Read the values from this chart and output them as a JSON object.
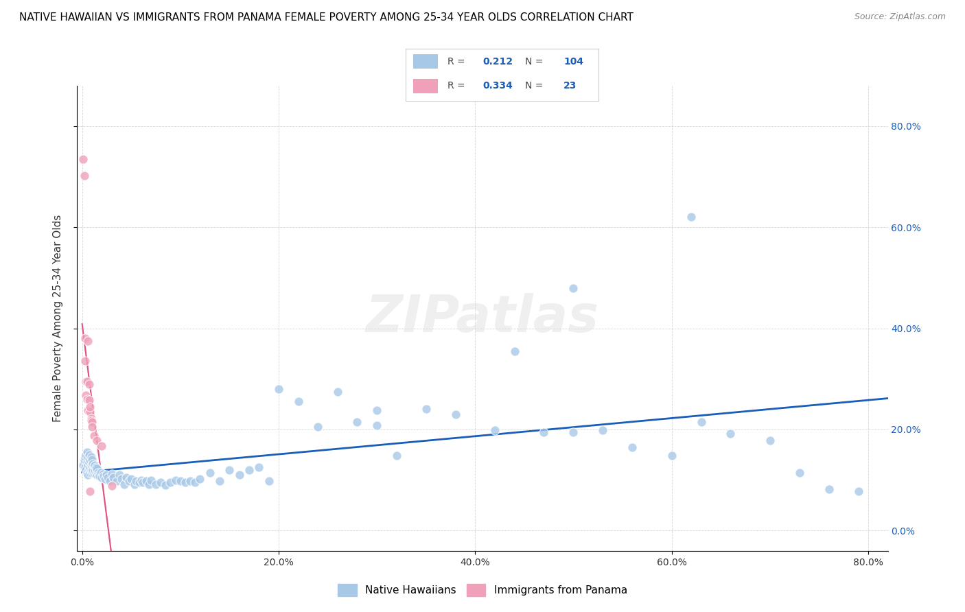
{
  "title": "NATIVE HAWAIIAN VS IMMIGRANTS FROM PANAMA FEMALE POVERTY AMONG 25-34 YEAR OLDS CORRELATION CHART",
  "source": "Source: ZipAtlas.com",
  "ylabel": "Female Poverty Among 25-34 Year Olds",
  "xlim": [
    -0.005,
    0.82
  ],
  "ylim": [
    -0.04,
    0.88
  ],
  "xticks": [
    0.0,
    0.2,
    0.4,
    0.6,
    0.8
  ],
  "yticks": [
    0.0,
    0.2,
    0.4,
    0.6,
    0.8
  ],
  "blue_R": 0.212,
  "blue_N": 104,
  "pink_R": 0.334,
  "pink_N": 23,
  "blue_color": "#A8C8E8",
  "pink_color": "#F0A0B8",
  "blue_line_color": "#1A5EB8",
  "pink_line_color": "#E05080",
  "pink_dash_color": "#F0A0B8",
  "watermark": "ZIPatlas",
  "legend_label_blue": "Native Hawaiians",
  "legend_label_pink": "Immigrants from Panama",
  "blue_x": [
    0.001,
    0.002,
    0.003,
    0.003,
    0.004,
    0.004,
    0.005,
    0.005,
    0.005,
    0.006,
    0.006,
    0.006,
    0.007,
    0.007,
    0.007,
    0.008,
    0.008,
    0.008,
    0.009,
    0.009,
    0.009,
    0.01,
    0.01,
    0.01,
    0.011,
    0.011,
    0.012,
    0.012,
    0.013,
    0.013,
    0.014,
    0.014,
    0.015,
    0.015,
    0.016,
    0.017,
    0.018,
    0.019,
    0.02,
    0.021,
    0.022,
    0.023,
    0.025,
    0.026,
    0.028,
    0.03,
    0.032,
    0.035,
    0.038,
    0.04,
    0.043,
    0.045,
    0.048,
    0.05,
    0.053,
    0.055,
    0.058,
    0.06,
    0.062,
    0.065,
    0.068,
    0.07,
    0.075,
    0.08,
    0.085,
    0.09,
    0.095,
    0.1,
    0.105,
    0.11,
    0.115,
    0.12,
    0.13,
    0.14,
    0.15,
    0.16,
    0.17,
    0.18,
    0.19,
    0.2,
    0.22,
    0.24,
    0.26,
    0.28,
    0.3,
    0.32,
    0.35,
    0.38,
    0.42,
    0.47,
    0.5,
    0.53,
    0.56,
    0.6,
    0.63,
    0.66,
    0.7,
    0.73,
    0.76,
    0.79,
    0.5,
    0.3,
    0.44,
    0.62
  ],
  "blue_y": [
    0.13,
    0.14,
    0.125,
    0.145,
    0.12,
    0.15,
    0.115,
    0.135,
    0.155,
    0.11,
    0.13,
    0.145,
    0.12,
    0.135,
    0.15,
    0.115,
    0.125,
    0.14,
    0.118,
    0.13,
    0.145,
    0.115,
    0.128,
    0.14,
    0.118,
    0.132,
    0.115,
    0.128,
    0.118,
    0.13,
    0.115,
    0.125,
    0.11,
    0.122,
    0.115,
    0.11,
    0.108,
    0.115,
    0.105,
    0.112,
    0.108,
    0.102,
    0.11,
    0.105,
    0.098,
    0.112,
    0.105,
    0.098,
    0.11,
    0.102,
    0.092,
    0.105,
    0.098,
    0.102,
    0.092,
    0.098,
    0.095,
    0.1,
    0.095,
    0.098,
    0.092,
    0.1,
    0.092,
    0.095,
    0.09,
    0.095,
    0.1,
    0.098,
    0.095,
    0.098,
    0.095,
    0.102,
    0.115,
    0.098,
    0.12,
    0.11,
    0.12,
    0.125,
    0.098,
    0.28,
    0.255,
    0.205,
    0.275,
    0.215,
    0.238,
    0.148,
    0.24,
    0.23,
    0.198,
    0.195,
    0.48,
    0.198,
    0.165,
    0.148,
    0.215,
    0.192,
    0.178,
    0.115,
    0.082,
    0.078,
    0.195,
    0.208,
    0.355,
    0.62
  ],
  "pink_x": [
    0.001,
    0.002,
    0.003,
    0.003,
    0.004,
    0.004,
    0.005,
    0.005,
    0.006,
    0.006,
    0.007,
    0.007,
    0.008,
    0.008,
    0.009,
    0.009,
    0.01,
    0.01,
    0.012,
    0.015,
    0.02,
    0.03,
    0.008
  ],
  "pink_y": [
    0.735,
    0.702,
    0.335,
    0.38,
    0.268,
    0.295,
    0.26,
    0.295,
    0.238,
    0.375,
    0.258,
    0.29,
    0.235,
    0.245,
    0.222,
    0.218,
    0.215,
    0.205,
    0.188,
    0.178,
    0.168,
    0.088,
    0.078
  ]
}
